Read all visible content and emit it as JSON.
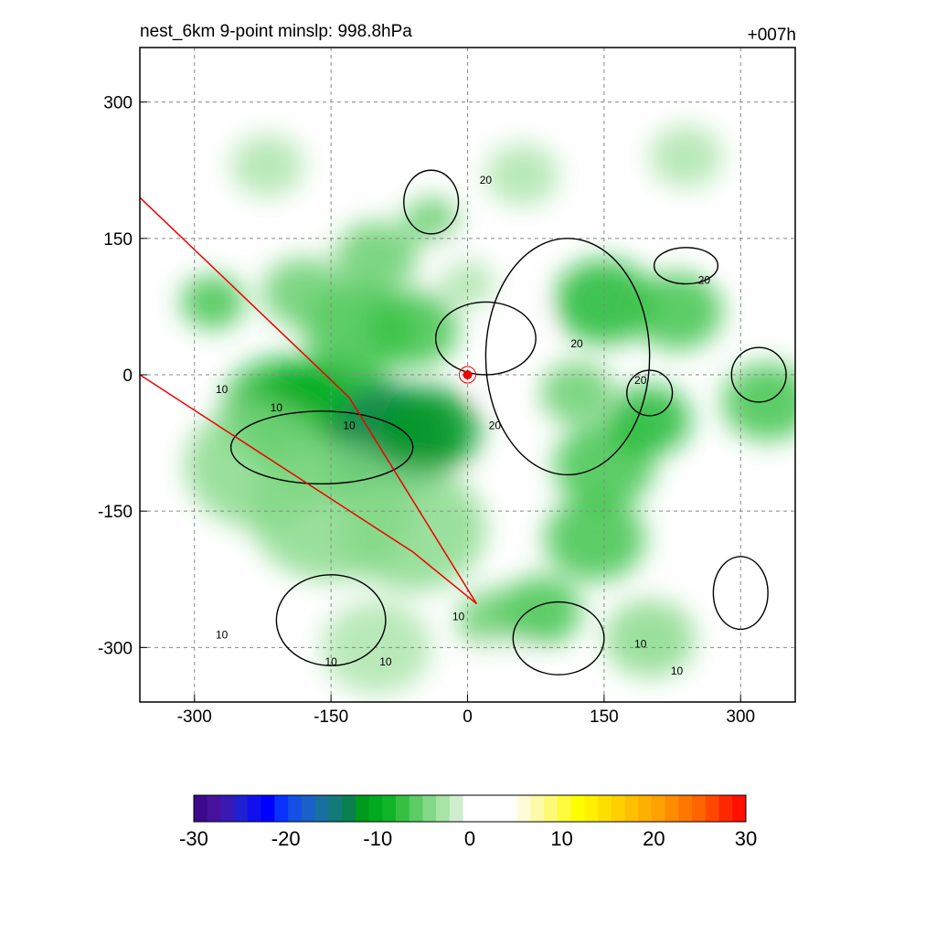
{
  "chart_data": {
    "type": "heatmap",
    "title_left": "nest_6km  9-point minslp: 998.8hPa",
    "title_right": "+007h",
    "xlim": [
      -360,
      360
    ],
    "ylim": [
      -360,
      360
    ],
    "x_ticks": [
      -300,
      -150,
      0,
      150,
      300
    ],
    "y_ticks": [
      300,
      150,
      0,
      -150,
      -300
    ],
    "x_tick_labels": [
      "-300",
      "-150",
      "0",
      "150",
      "300"
    ],
    "y_tick_labels": [
      "300",
      "150",
      "0",
      "-150",
      "-300"
    ],
    "grid": true,
    "colorbar": {
      "min": -30,
      "max": 30,
      "tick_values": [
        -30,
        -20,
        -10,
        0,
        10,
        20,
        30
      ],
      "tick_labels": [
        "-30",
        "-20",
        "-10",
        "0",
        "10",
        "20",
        "30"
      ],
      "colors": [
        "#3c0a8c",
        "#46129c",
        "#3a18b4",
        "#2020d0",
        "#1010ee",
        "#0000ff",
        "#0a32ff",
        "#1450e6",
        "#1a60c8",
        "#1870a0",
        "#127a78",
        "#0a8050",
        "#009a1e",
        "#00aa1e",
        "#10b428",
        "#36c042",
        "#5ccc64",
        "#82d886",
        "#a8e4a8",
        "#cfeecf",
        "#ffffff",
        "#ffffff",
        "#ffffff",
        "#ffffff",
        "#fefcd8",
        "#fefaa8",
        "#fefa78",
        "#fefa3c",
        "#fefe00",
        "#fef000",
        "#fee000",
        "#fed000",
        "#fec000",
        "#feb000",
        "#fea000",
        "#fe8c00",
        "#fe7800",
        "#fe6400",
        "#fe4800",
        "#fe2800",
        "#fe1000"
      ]
    },
    "contour_labels": [
      "10",
      "10",
      "10",
      "10",
      "10",
      "10",
      "10",
      "10",
      "10",
      "20",
      "20",
      "20",
      "20",
      "20"
    ],
    "green_blobs": [
      {
        "x": -200,
        "y": -40,
        "r": 70,
        "v": -9
      },
      {
        "x": -150,
        "y": -60,
        "r": 90,
        "v": -10
      },
      {
        "x": -80,
        "y": -70,
        "r": 70,
        "v": -13
      },
      {
        "x": -40,
        "y": -60,
        "r": 55,
        "v": -11
      },
      {
        "x": -230,
        "y": -100,
        "r": 80,
        "v": -5
      },
      {
        "x": -150,
        "y": -150,
        "r": 90,
        "v": -5
      },
      {
        "x": -60,
        "y": -170,
        "r": 80,
        "v": -4
      },
      {
        "x": -120,
        "y": 50,
        "r": 60,
        "v": -8
      },
      {
        "x": -60,
        "y": 50,
        "r": 50,
        "v": -8
      },
      {
        "x": -100,
        "y": 130,
        "r": 45,
        "v": -6
      },
      {
        "x": -180,
        "y": 90,
        "r": 45,
        "v": -6
      },
      {
        "x": -40,
        "y": 170,
        "r": 30,
        "v": -6
      },
      {
        "x": -280,
        "y": 80,
        "r": 35,
        "v": -7
      },
      {
        "x": 150,
        "y": 80,
        "r": 55,
        "v": -9
      },
      {
        "x": 230,
        "y": 70,
        "r": 50,
        "v": -7
      },
      {
        "x": 150,
        "y": -100,
        "r": 55,
        "v": -8
      },
      {
        "x": 140,
        "y": -180,
        "r": 55,
        "v": -7
      },
      {
        "x": 200,
        "y": -50,
        "r": 45,
        "v": -9
      },
      {
        "x": 120,
        "y": -20,
        "r": 40,
        "v": -6
      },
      {
        "x": 330,
        "y": -30,
        "r": 50,
        "v": -7
      },
      {
        "x": 80,
        "y": -260,
        "r": 45,
        "v": -8
      },
      {
        "x": 30,
        "y": -270,
        "r": 40,
        "v": -6
      },
      {
        "x": 60,
        "y": 220,
        "r": 40,
        "v": -3
      },
      {
        "x": 240,
        "y": 240,
        "r": 40,
        "v": -3
      },
      {
        "x": -220,
        "y": 230,
        "r": 40,
        "v": -3
      },
      {
        "x": 200,
        "y": -290,
        "r": 50,
        "v": -5
      },
      {
        "x": -100,
        "y": -300,
        "r": 60,
        "v": -3
      },
      {
        "x": 0,
        "y": 100,
        "r": 30,
        "v": -3
      }
    ],
    "yellow_blobs": [
      {
        "x": 40,
        "y": -320,
        "r": 35,
        "v": 4
      },
      {
        "x": 300,
        "y": 140,
        "r": 20,
        "v": 4
      },
      {
        "x": -300,
        "y": 290,
        "r": 20,
        "v": 3
      },
      {
        "x": 340,
        "y": -180,
        "r": 25,
        "v": 4
      },
      {
        "x": 30,
        "y": -10,
        "r": 18,
        "v": 3
      },
      {
        "x": 60,
        "y": 60,
        "r": 25,
        "v": 2
      },
      {
        "x": -20,
        "y": 140,
        "r": 15,
        "v": 3
      }
    ],
    "storm_center": {
      "x": 0,
      "y": 0
    },
    "track_lines": [
      {
        "points": [
          [
            -360,
            195
          ],
          [
            -130,
            -25
          ],
          [
            10,
            -252
          ]
        ]
      },
      {
        "points": [
          [
            -360,
            0
          ],
          [
            -60,
            -195
          ],
          [
            10,
            -252
          ]
        ]
      }
    ]
  }
}
